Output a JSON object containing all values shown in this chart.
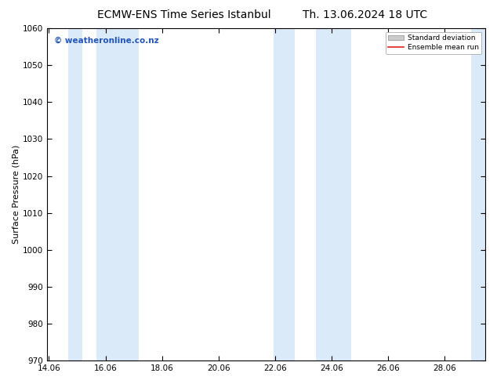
{
  "title_left": "ECMW-ENS Time Series Istanbul",
  "title_right": "Th. 13.06.2024 18 UTC",
  "ylabel": "Surface Pressure (hPa)",
  "ylim": [
    970,
    1060
  ],
  "yticks": [
    970,
    980,
    990,
    1000,
    1010,
    1020,
    1030,
    1040,
    1050,
    1060
  ],
  "xlim_start": 14.0,
  "xlim_end": 29.5,
  "xtick_labels": [
    "14.06",
    "16.06",
    "18.06",
    "20.06",
    "22.06",
    "24.06",
    "26.06",
    "28.06"
  ],
  "xtick_positions": [
    14.06,
    16.06,
    18.06,
    20.06,
    22.06,
    24.06,
    26.06,
    28.06
  ],
  "shaded_bands": [
    {
      "x_start": 14.75,
      "x_end": 15.25
    },
    {
      "x_start": 15.75,
      "x_end": 17.25
    },
    {
      "x_start": 22.0,
      "x_end": 22.75
    },
    {
      "x_start": 23.5,
      "x_end": 24.75
    },
    {
      "x_start": 29.0,
      "x_end": 29.5
    }
  ],
  "shade_color": "#daeaf8",
  "background_color": "#ffffff",
  "watermark_text": "© weatheronline.co.nz",
  "watermark_color": "#2255bb",
  "legend_std_label": "Standard deviation",
  "legend_mean_label": "Ensemble mean run",
  "legend_mean_color": "#dd2222",
  "title_fontsize": 10,
  "tick_fontsize": 7.5,
  "ylabel_fontsize": 8,
  "watermark_fontsize": 7.5
}
